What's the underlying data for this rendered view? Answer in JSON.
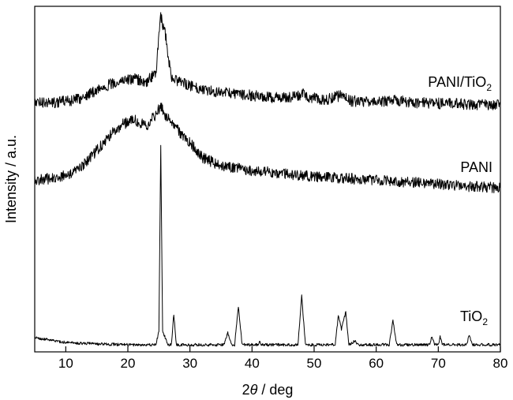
{
  "chart_data": {
    "type": "line",
    "title": "",
    "xlabel_prefix": "2",
    "xlabel_symbol": "θ",
    "xlabel_suffix": " / deg",
    "ylabel": "Intensity / a.u.",
    "xlim": [
      5,
      80
    ],
    "xticks": [
      "10",
      "20",
      "30",
      "40",
      "50",
      "60",
      "70",
      "80"
    ],
    "yticks_shown": false,
    "grid": false,
    "legend": "none (series labeled inline at right)",
    "series": [
      {
        "name_main": "PANI/TiO",
        "name_sub": "2",
        "color": "#000000",
        "points": [
          [
            5,
            130
          ],
          [
            8,
            130
          ],
          [
            12,
            126
          ],
          [
            16,
            110
          ],
          [
            19,
            102
          ],
          [
            21,
            100
          ],
          [
            23,
            104
          ],
          [
            24.5,
            92
          ],
          [
            25.3,
            22
          ],
          [
            26,
            40
          ],
          [
            27,
            100
          ],
          [
            29,
            106
          ],
          [
            32,
            113
          ],
          [
            36,
            118
          ],
          [
            40,
            121
          ],
          [
            44,
            124
          ],
          [
            48,
            122
          ],
          [
            48.3,
            116
          ],
          [
            49,
            124
          ],
          [
            52,
            126
          ],
          [
            54.3,
            121
          ],
          [
            56,
            128
          ],
          [
            60,
            129
          ],
          [
            63,
            127
          ],
          [
            66,
            130
          ],
          [
            70,
            131
          ],
          [
            75,
            132
          ],
          [
            80,
            133
          ]
        ]
      },
      {
        "name_main": "PANI",
        "name_sub": "",
        "color": "#000000",
        "points": [
          [
            5,
            228
          ],
          [
            8,
            226
          ],
          [
            11,
            221
          ],
          [
            14,
            200
          ],
          [
            17,
            172
          ],
          [
            19,
            158
          ],
          [
            21,
            152
          ],
          [
            23,
            160
          ],
          [
            24.5,
            145
          ],
          [
            25.3,
            133
          ],
          [
            26,
            145
          ],
          [
            28,
            165
          ],
          [
            30,
            180
          ],
          [
            32,
            200
          ],
          [
            35,
            210
          ],
          [
            40,
            216
          ],
          [
            45,
            220
          ],
          [
            50,
            224
          ],
          [
            55,
            226
          ],
          [
            60,
            228
          ],
          [
            65,
            231
          ],
          [
            70,
            233
          ],
          [
            75,
            236
          ],
          [
            80,
            238
          ]
        ]
      },
      {
        "name_main": "TiO",
        "name_sub": "2",
        "color": "#000000",
        "points": [
          [
            5,
            428
          ],
          [
            10,
            434
          ],
          [
            15,
            436
          ],
          [
            20,
            437
          ],
          [
            24.5,
            437
          ],
          [
            25.0,
            420
          ],
          [
            25.3,
            183
          ],
          [
            25.6,
            420
          ],
          [
            26.5,
            437
          ],
          [
            27.0,
            437
          ],
          [
            27.4,
            398
          ],
          [
            27.8,
            437
          ],
          [
            35.5,
            437
          ],
          [
            36.1,
            422
          ],
          [
            36.7,
            437
          ],
          [
            37.2,
            437
          ],
          [
            37.8,
            388
          ],
          [
            38.4,
            437
          ],
          [
            41,
            437
          ],
          [
            41.2,
            432
          ],
          [
            41.5,
            437
          ],
          [
            47.4,
            437
          ],
          [
            48.0,
            375
          ],
          [
            48.6,
            437
          ],
          [
            53.4,
            437
          ],
          [
            53.9,
            400
          ],
          [
            54.4,
            418
          ],
          [
            55.1,
            395
          ],
          [
            55.6,
            437
          ],
          [
            56.6,
            432
          ],
          [
            57,
            437
          ],
          [
            62.1,
            437
          ],
          [
            62.7,
            406
          ],
          [
            63.3,
            437
          ],
          [
            68.6,
            437
          ],
          [
            69.0,
            426
          ],
          [
            69.4,
            437
          ],
          [
            70.0,
            437
          ],
          [
            70.3,
            427
          ],
          [
            70.7,
            437
          ],
          [
            74.6,
            437
          ],
          [
            75.0,
            424
          ],
          [
            75.5,
            437
          ],
          [
            80,
            437
          ]
        ]
      }
    ]
  }
}
